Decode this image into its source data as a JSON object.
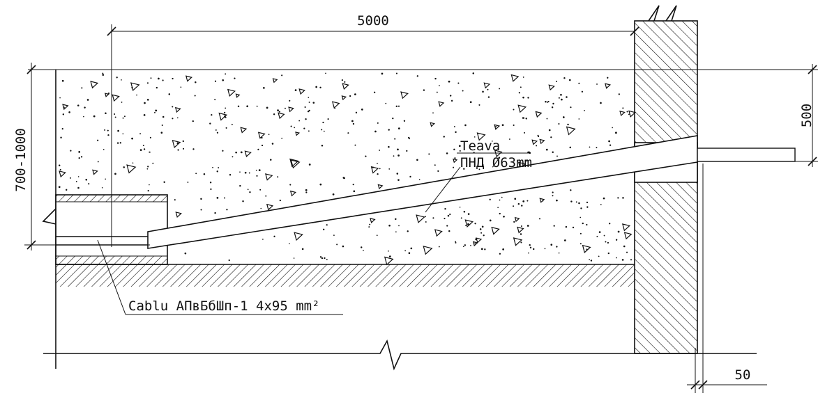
{
  "dimensions": {
    "length": "5000",
    "depth": "700-1000",
    "wall_offset": "500",
    "pipe_protrusion": "50"
  },
  "labels": {
    "pipe_line1": "Teava",
    "pipe_line2": "ПНД Ø63mm",
    "cable": "Cablu АПвБбШп-1 4x95 mm²"
  }
}
